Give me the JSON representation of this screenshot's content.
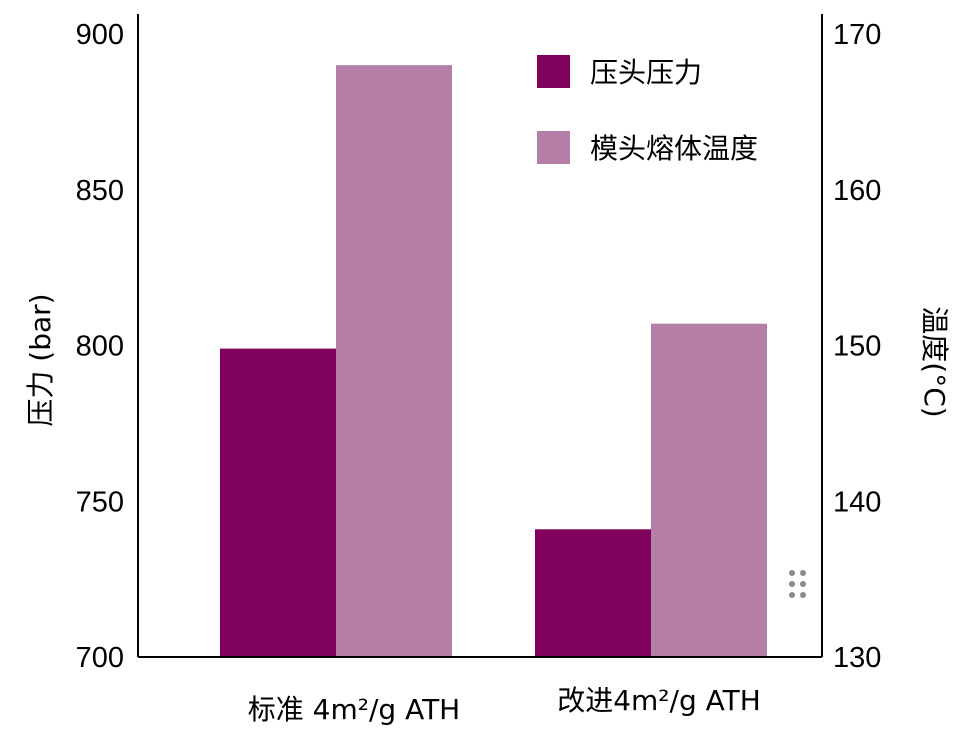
{
  "chart_data": {
    "type": "bar",
    "categories": [
      "标准 4m²/g ATH",
      "改进4m²/g ATH"
    ],
    "series": [
      {
        "name": "压头压力",
        "axis": "left",
        "values": [
          799,
          741
        ],
        "color": "#80005e"
      },
      {
        "name": "模头熔体温度",
        "axis": "right",
        "values": [
          168,
          151.4
        ],
        "color": "#b47ea6"
      }
    ],
    "y_left": {
      "label": "压力 (bar)",
      "range": [
        700,
        900
      ],
      "ticks": [
        700,
        750,
        800,
        850,
        900
      ]
    },
    "y_right": {
      "label": "温度(°C)",
      "range": [
        130,
        170
      ],
      "ticks": [
        130,
        140,
        150,
        160,
        170
      ]
    },
    "legend_position": "top-right",
    "grid": false
  }
}
